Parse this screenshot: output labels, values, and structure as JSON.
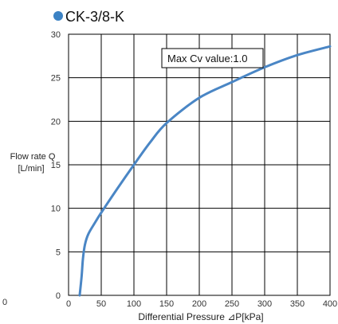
{
  "chart_data": {
    "type": "line",
    "title": "CK-3/8-K",
    "xlabel": "Differential Pressure ⊿P[kPa]",
    "ylabel_lines": [
      "Flow rate Q",
      "[L/min]"
    ],
    "annotation": "Max Cv value:1.0",
    "xlim": [
      0,
      400
    ],
    "ylim": [
      0,
      30
    ],
    "x_ticks": [
      "0",
      "50",
      "100",
      "150",
      "200",
      "250",
      "300",
      "350",
      "400"
    ],
    "y_ticks": [
      "0",
      "5",
      "10",
      "15",
      "20",
      "25",
      "30"
    ],
    "grid": true,
    "series": [
      {
        "color": "#4a86c5",
        "x": [
          17,
          20,
          22,
          25,
          30,
          40,
          50,
          75,
          100,
          125,
          150,
          200,
          250,
          300,
          350,
          400
        ],
        "y": [
          0,
          2.2,
          4.2,
          5.8,
          7,
          8.3,
          9.5,
          12.3,
          15,
          17.6,
          19.8,
          22.7,
          24.5,
          26.2,
          27.6,
          28.6
        ]
      }
    ],
    "stray_label": "0"
  },
  "colors": {
    "title_marker": "#3b82c4",
    "grid": "#000000",
    "axis": "#000000"
  }
}
